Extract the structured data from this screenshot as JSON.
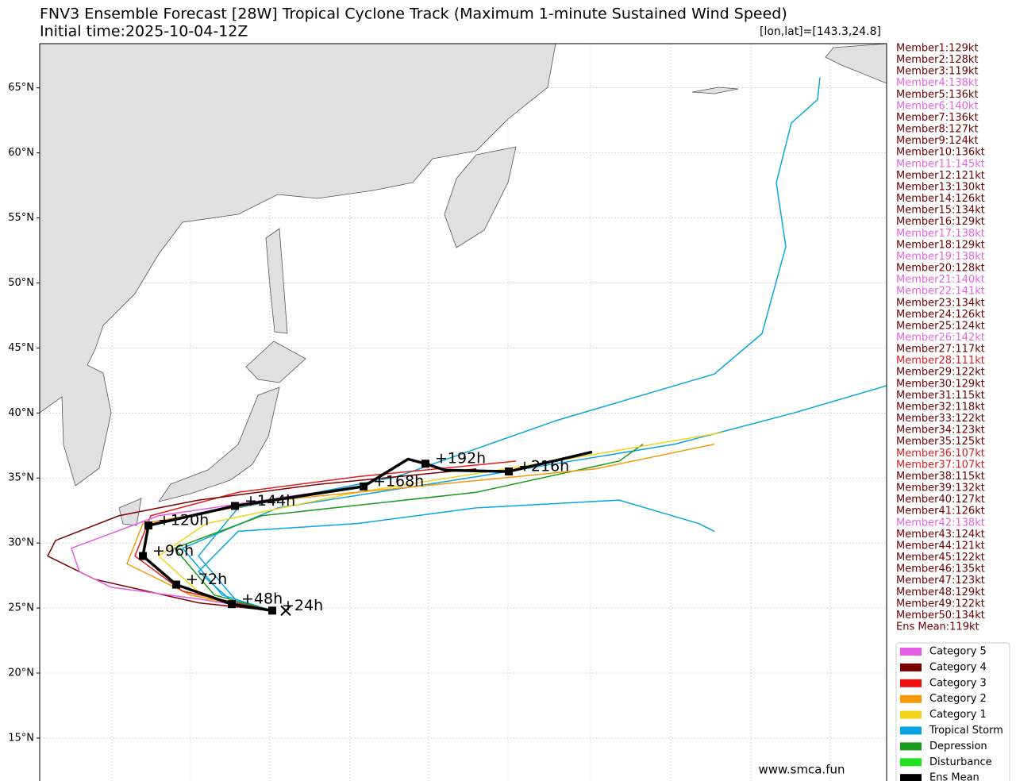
{
  "chart_data": {
    "type": "track-map",
    "title": "FNV3 Ensemble Forecast [28W] Tropical Cyclone Track (Maximum 1-minute Sustained Wind Speed)",
    "subtitle": "Initial time:2025-10-04-12Z",
    "position": "[lon,lat]=[143.3,24.8]",
    "watermark": "www.smca.fun",
    "xlim": [
      128.65,
      182.0
    ],
    "ylim": [
      11.7,
      68.4
    ],
    "xticks": [
      133.2,
      138.15,
      143.15,
      148.2,
      153.15,
      158.15,
      163.35,
      168.4,
      173.45,
      178.45
    ],
    "yticks": [
      {
        "value": 15,
        "label": "15°N"
      },
      {
        "value": 20,
        "label": "20°N"
      },
      {
        "value": 25,
        "label": "25°N"
      },
      {
        "value": 30,
        "label": "30°N"
      },
      {
        "value": 35,
        "label": "35°N"
      },
      {
        "value": 40,
        "label": "40°N"
      },
      {
        "value": 45,
        "label": "45°N"
      },
      {
        "value": 50,
        "label": "50°N"
      },
      {
        "value": 55,
        "label": "55°N"
      },
      {
        "value": 60,
        "label": "60°N"
      },
      {
        "value": 65,
        "label": "65°N"
      }
    ],
    "grid": true,
    "tracks": [
      {
        "color": "#0aa5e0",
        "lon": [
          143.3,
          141.15,
          138.65,
          141.15,
          151.15,
          161.15,
          171.15,
          174.15,
          175.65,
          175.05,
          176.0,
          177.65,
          177.8
        ],
        "lat": [
          24.8,
          25.4,
          29.0,
          32.7,
          35.1,
          39.4,
          43.0,
          46.1,
          52.8,
          57.7,
          62.3,
          64.1,
          65.8
        ]
      },
      {
        "color": "#0aa5e0",
        "lon": [
          143.3,
          140.15,
          137.65,
          143.65,
          156.15,
          168.65,
          176.15,
          182.0
        ],
        "lat": [
          24.8,
          26.0,
          29.6,
          32.7,
          35.1,
          37.6,
          40.0,
          42.1
        ]
      },
      {
        "color": "#0aa5e0",
        "lon": [
          143.3,
          141.15,
          138.65,
          141.15,
          148.65,
          156.15,
          165.15,
          170.15,
          171.15
        ],
        "lat": [
          24.8,
          25.1,
          27.8,
          30.9,
          31.5,
          32.7,
          33.3,
          31.5,
          30.9
        ]
      },
      {
        "color": "#1a9a1a",
        "lon": [
          143.3,
          139.65,
          137.15,
          142.65,
          156.15,
          165.15,
          166.65
        ],
        "lat": [
          24.8,
          26.0,
          29.6,
          32.1,
          33.9,
          36.3,
          37.6
        ]
      },
      {
        "color": "#f2d21a",
        "lon": [
          143.3,
          139.15,
          136.15,
          139.15,
          148.65,
          161.15,
          171.65
        ],
        "lat": [
          24.8,
          25.7,
          29.0,
          31.5,
          33.9,
          36.3,
          38.5
        ]
      },
      {
        "color": "#f29a0a",
        "lon": [
          143.3,
          138.15,
          134.15,
          135.15,
          143.65,
          153.65,
          163.65,
          171.15
        ],
        "lat": [
          24.8,
          26.0,
          28.4,
          31.5,
          33.3,
          34.5,
          35.7,
          37.6
        ]
      },
      {
        "color": "#e51c1c",
        "lon": [
          143.3,
          137.65,
          134.65,
          135.65,
          141.15,
          148.65,
          158.65
        ],
        "lat": [
          24.8,
          26.3,
          29.0,
          32.1,
          33.9,
          35.1,
          36.3
        ]
      },
      {
        "color": "#7a0000",
        "lon": [
          143.3,
          138.65,
          132.15,
          129.15,
          129.65,
          133.65,
          138.65,
          146.15,
          156.15
        ],
        "lat": [
          24.8,
          25.4,
          27.2,
          29.0,
          30.2,
          32.1,
          33.3,
          34.5,
          35.7
        ]
      },
      {
        "color": "#e65ce6",
        "lon": [
          143.3,
          138.65,
          133.15,
          131.15,
          130.65,
          136.15,
          146.15
        ],
        "lat": [
          24.8,
          25.7,
          26.6,
          27.8,
          29.6,
          32.1,
          33.9
        ]
      }
    ],
    "mean_track": {
      "color": "#000000",
      "lon": [
        143.3,
        140.75,
        137.25,
        135.15,
        135.5,
        140.95,
        149.05,
        151.85,
        152.95,
        154.2,
        158.2,
        163.45
      ],
      "lat": [
        24.8,
        25.3,
        26.8,
        29.0,
        31.35,
        32.85,
        34.35,
        36.45,
        36.1,
        35.6,
        35.5,
        37.0
      ],
      "labels": [
        "+24h",
        "+48h",
        "+72h",
        "+96h",
        "+120h",
        "+144h",
        "+168h",
        null,
        "+192h",
        null,
        "+216h",
        null
      ]
    },
    "members": [
      "Member1:129kt",
      "Member2:128kt",
      "Member3:119kt",
      "Member4:138kt",
      "Member5:136kt",
      "Member6:140kt",
      "Member7:136kt",
      "Member8:127kt",
      "Member9:124kt",
      "Member10:136kt",
      "Member11:145kt",
      "Member12:121kt",
      "Member13:130kt",
      "Member14:126kt",
      "Member15:134kt",
      "Member16:129kt",
      "Member17:138kt",
      "Member18:129kt",
      "Member19:138kt",
      "Member20:128kt",
      "Member21:140kt",
      "Member22:141kt",
      "Member23:134kt",
      "Member24:126kt",
      "Member25:124kt",
      "Member26:142kt",
      "Member27:117kt",
      "Member28:111kt",
      "Member29:122kt",
      "Member30:129kt",
      "Member31:115kt",
      "Member32:118kt",
      "Member33:122kt",
      "Member34:123kt",
      "Member35:125kt",
      "Member36:107kt",
      "Member37:107kt",
      "Member38:115kt",
      "Member39:132kt",
      "Member40:127kt",
      "Member41:126kt",
      "Member42:138kt",
      "Member43:124kt",
      "Member44:121kt",
      "Member45:122kt",
      "Member46:135kt",
      "Member47:123kt",
      "Member48:129kt",
      "Member49:122kt",
      "Member50:134kt",
      "Ens Mean:119kt"
    ],
    "member_colors": [
      "#6b0000",
      "#6b0000",
      "#6b0000",
      "#e066e0",
      "#6b0000",
      "#e066e0",
      "#6b0000",
      "#6b0000",
      "#6b0000",
      "#6b0000",
      "#e066e0",
      "#6b0000",
      "#6b0000",
      "#6b0000",
      "#6b0000",
      "#6b0000",
      "#e066e0",
      "#6b0000",
      "#e066e0",
      "#6b0000",
      "#e066e0",
      "#e066e0",
      "#6b0000",
      "#6b0000",
      "#6b0000",
      "#e066e0",
      "#6b0000",
      "#d62020",
      "#6b0000",
      "#6b0000",
      "#6b0000",
      "#6b0000",
      "#6b0000",
      "#6b0000",
      "#6b0000",
      "#d62020",
      "#d62020",
      "#6b0000",
      "#6b0000",
      "#6b0000",
      "#6b0000",
      "#e066e0",
      "#6b0000",
      "#6b0000",
      "#6b0000",
      "#6b0000",
      "#6b0000",
      "#6b0000",
      "#6b0000",
      "#6b0000",
      "#6b0000"
    ],
    "legend": [
      {
        "name": "Category 5",
        "color": "#e65ce6"
      },
      {
        "name": "Category 4",
        "color": "#7a0000"
      },
      {
        "name": "Category 3",
        "color": "#f01010"
      },
      {
        "name": "Category 2",
        "color": "#f29a0a"
      },
      {
        "name": "Category 1",
        "color": "#f2d21a"
      },
      {
        "name": "Tropical Storm",
        "color": "#0aa5e0"
      },
      {
        "name": "Depression",
        "color": "#1a9a1a"
      },
      {
        "name": "Disturbance",
        "color": "#22e022"
      },
      {
        "name": "Ens Mean",
        "color": "#000000"
      }
    ]
  }
}
